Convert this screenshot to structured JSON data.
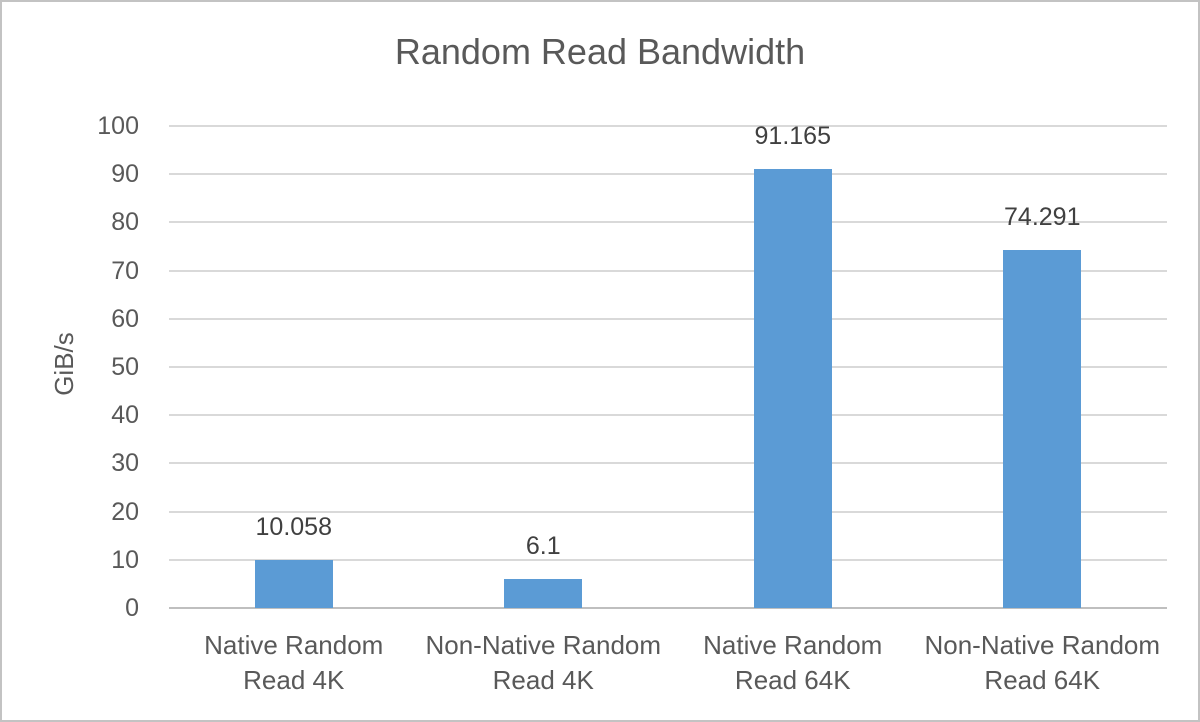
{
  "chart_data": {
    "type": "bar",
    "title": "Random Read Bandwidth",
    "xlabel": "",
    "ylabel": "GiB/s",
    "categories": [
      "Native Random Read 4K",
      "Non-Native Random Read 4K",
      "Native Random Read 64K",
      "Non-Native Random Read 64K"
    ],
    "category_lines": [
      [
        "Native Random",
        "Read 4K"
      ],
      [
        "Non-Native Random",
        "Read 4K"
      ],
      [
        "Native Random",
        "Read 64K"
      ],
      [
        "Non-Native Random",
        "Read 64K"
      ]
    ],
    "values": [
      10.058,
      6.1,
      91.165,
      74.291
    ],
    "data_labels": [
      "10.058",
      "6.1",
      "91.165",
      "74.291"
    ],
    "ylim": [
      0,
      100
    ],
    "yticks": [
      0,
      10,
      20,
      30,
      40,
      50,
      60,
      70,
      80,
      90,
      100
    ],
    "grid": true,
    "legend_position": "none",
    "colors": {
      "bar": "#5b9bd5",
      "gridline": "#d9d9d9",
      "axis_line": "#bfbfbf",
      "text": "#595959",
      "value_label": "#404040",
      "border": "#c3c3c3"
    }
  }
}
